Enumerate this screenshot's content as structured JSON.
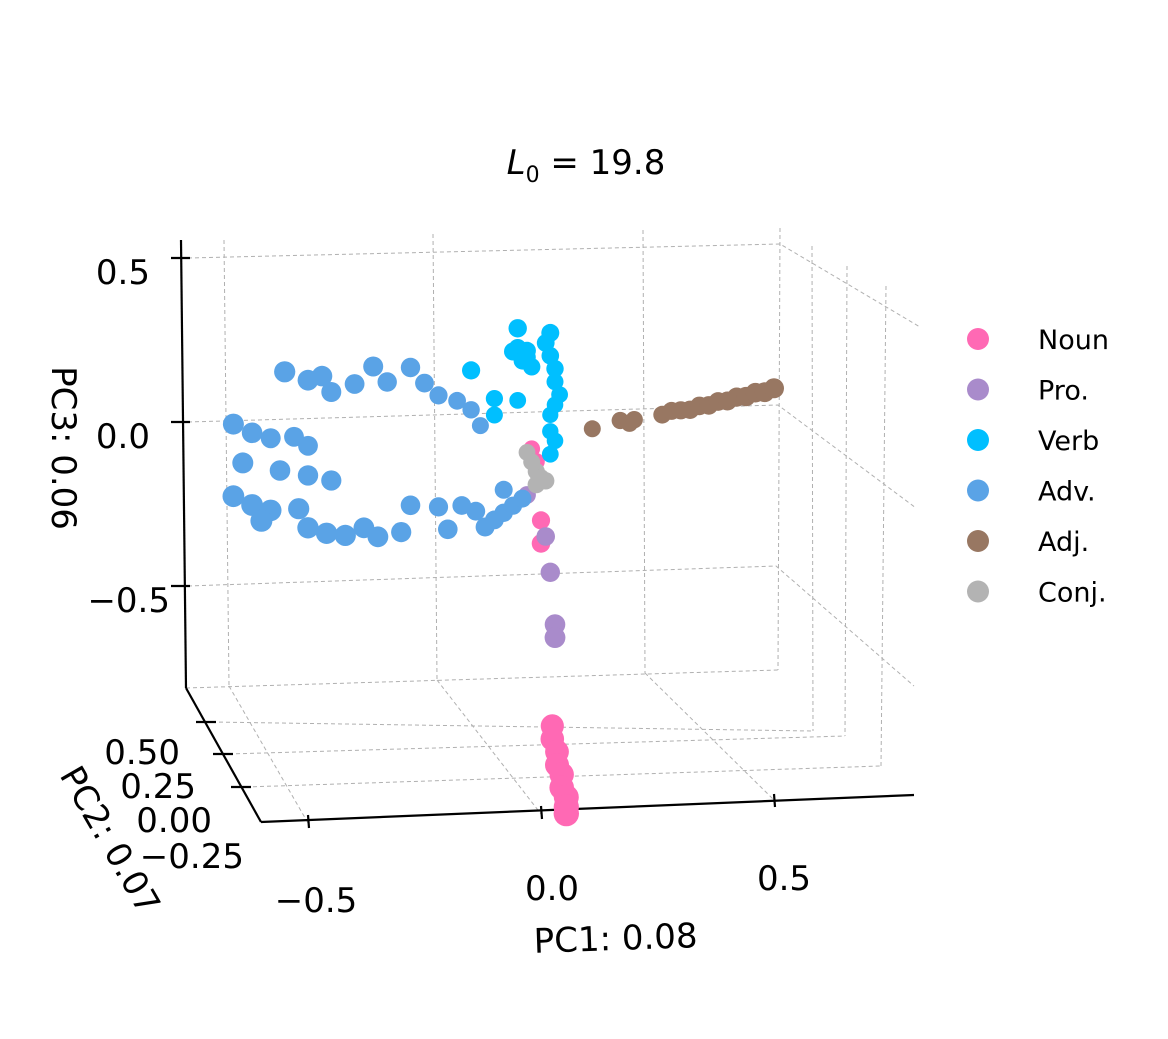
{
  "chart_data": {
    "type": "scatter3d",
    "title": {
      "base": "L",
      "sub": "0",
      "rest": " = 19.8"
    },
    "xlabel": "PC1: 0.08",
    "ylabel": "PC2: 0.07",
    "zlabel": "PC3: 0.06",
    "x_ticks": [
      "−0.5",
      "0.0",
      "0.5"
    ],
    "y_ticks": [
      "0.50",
      "0.25",
      "0.00",
      "−0.25"
    ],
    "z_ticks": [
      "0.5",
      "0.0",
      "−0.5"
    ],
    "grid": true,
    "legend_position": "right",
    "series": [
      {
        "name": "Noun",
        "color": "#ff69b4",
        "points": [
          [
            -0.01,
            -0.1,
            -0.12
          ],
          [
            -0.02,
            -0.1,
            -0.08
          ],
          [
            0.0,
            -0.1,
            -0.3
          ],
          [
            0.0,
            -0.1,
            -0.37
          ],
          [
            -0.01,
            -0.2,
            -0.95
          ],
          [
            -0.01,
            -0.2,
            -0.99
          ],
          [
            0.0,
            -0.2,
            -1.03
          ],
          [
            0.0,
            -0.2,
            -1.07
          ],
          [
            0.01,
            -0.2,
            -1.1
          ],
          [
            0.01,
            -0.2,
            -1.14
          ],
          [
            0.02,
            -0.2,
            -1.17
          ],
          [
            0.02,
            -0.2,
            -1.2
          ],
          [
            0.02,
            -0.2,
            -1.22
          ]
        ]
      },
      {
        "name": "Pro.",
        "color": "#a98bcb",
        "points": [
          [
            -0.03,
            -0.1,
            -0.22
          ],
          [
            0.01,
            -0.1,
            -0.35
          ],
          [
            0.02,
            -0.1,
            -0.46
          ],
          [
            0.03,
            -0.1,
            -0.62
          ],
          [
            0.03,
            -0.1,
            -0.66
          ]
        ]
      },
      {
        "name": "Verb",
        "color": "#00bfff",
        "points": [
          [
            -0.05,
            -0.1,
            0.29
          ],
          [
            -0.05,
            -0.1,
            0.23
          ],
          [
            -0.06,
            -0.1,
            0.22
          ],
          [
            -0.03,
            -0.1,
            0.22
          ],
          [
            -0.04,
            -0.1,
            0.19
          ],
          [
            -0.02,
            -0.1,
            0.17
          ],
          [
            -0.03,
            -0.1,
            0.2
          ],
          [
            0.02,
            -0.1,
            0.27
          ],
          [
            0.01,
            -0.1,
            0.24
          ],
          [
            0.02,
            -0.1,
            0.2
          ],
          [
            0.03,
            -0.1,
            0.16
          ],
          [
            0.03,
            -0.1,
            0.12
          ],
          [
            0.04,
            -0.1,
            0.08
          ],
          [
            0.03,
            -0.1,
            0.05
          ],
          [
            0.02,
            -0.1,
            0.02
          ],
          [
            0.02,
            -0.1,
            -0.03
          ],
          [
            0.03,
            -0.1,
            -0.06
          ],
          [
            0.02,
            -0.1,
            -0.1
          ],
          [
            -0.05,
            -0.1,
            0.07
          ],
          [
            -0.1,
            -0.1,
            0.08
          ],
          [
            -0.15,
            -0.1,
            0.17
          ],
          [
            -0.1,
            -0.1,
            0.03
          ]
        ]
      },
      {
        "name": "Adv.",
        "color": "#5aa3e6",
        "points": [
          [
            -0.55,
            -0.1,
            0.2
          ],
          [
            -0.5,
            -0.1,
            0.17
          ],
          [
            -0.47,
            -0.1,
            0.18
          ],
          [
            -0.45,
            -0.1,
            0.13
          ],
          [
            -0.4,
            -0.1,
            0.15
          ],
          [
            -0.36,
            -0.1,
            0.2
          ],
          [
            -0.33,
            -0.1,
            0.15
          ],
          [
            -0.28,
            -0.1,
            0.19
          ],
          [
            -0.25,
            -0.1,
            0.14
          ],
          [
            -0.22,
            -0.1,
            0.1
          ],
          [
            -0.18,
            -0.1,
            0.08
          ],
          [
            -0.15,
            -0.1,
            0.05
          ],
          [
            -0.13,
            -0.1,
            0.0
          ],
          [
            -0.66,
            -0.1,
            0.05
          ],
          [
            -0.62,
            -0.1,
            0.02
          ],
          [
            -0.58,
            -0.1,
            0.0
          ],
          [
            -0.53,
            -0.1,
            0.0
          ],
          [
            -0.5,
            -0.1,
            -0.03
          ],
          [
            -0.64,
            -0.1,
            -0.07
          ],
          [
            -0.56,
            -0.1,
            -0.1
          ],
          [
            -0.5,
            -0.1,
            -0.12
          ],
          [
            -0.45,
            -0.1,
            -0.14
          ],
          [
            -0.66,
            -0.1,
            -0.17
          ],
          [
            -0.62,
            -0.1,
            -0.2
          ],
          [
            -0.58,
            -0.1,
            -0.22
          ],
          [
            -0.6,
            -0.1,
            -0.25
          ],
          [
            -0.52,
            -0.1,
            -0.22
          ],
          [
            -0.5,
            -0.1,
            -0.28
          ],
          [
            -0.46,
            -0.1,
            -0.3
          ],
          [
            -0.42,
            -0.1,
            -0.31
          ],
          [
            -0.38,
            -0.1,
            -0.29
          ],
          [
            -0.35,
            -0.1,
            -0.32
          ],
          [
            -0.3,
            -0.1,
            -0.31
          ],
          [
            -0.28,
            -0.1,
            -0.23
          ],
          [
            -0.22,
            -0.1,
            -0.24
          ],
          [
            -0.2,
            -0.1,
            -0.31
          ],
          [
            -0.17,
            -0.1,
            -0.24
          ],
          [
            -0.14,
            -0.1,
            -0.26
          ],
          [
            -0.12,
            -0.1,
            -0.31
          ],
          [
            -0.1,
            -0.1,
            -0.29
          ],
          [
            -0.08,
            -0.1,
            -0.27
          ],
          [
            -0.06,
            -0.1,
            -0.25
          ],
          [
            -0.08,
            -0.1,
            -0.2
          ],
          [
            -0.04,
            -0.1,
            -0.23
          ]
        ]
      },
      {
        "name": "Adj.",
        "color": "#987762",
        "points": [
          [
            0.11,
            -0.1,
            -0.03
          ],
          [
            0.17,
            -0.1,
            -0.01
          ],
          [
            0.19,
            -0.1,
            -0.02
          ],
          [
            0.2,
            -0.1,
            -0.01
          ],
          [
            0.26,
            -0.1,
            0.0
          ],
          [
            0.28,
            -0.1,
            0.01
          ],
          [
            0.3,
            -0.1,
            0.01
          ],
          [
            0.32,
            -0.1,
            0.01
          ],
          [
            0.34,
            -0.1,
            0.02
          ],
          [
            0.36,
            -0.1,
            0.02
          ],
          [
            0.38,
            -0.1,
            0.03
          ],
          [
            0.4,
            -0.1,
            0.03
          ],
          [
            0.42,
            -0.1,
            0.04
          ],
          [
            0.44,
            -0.1,
            0.04
          ],
          [
            0.46,
            -0.1,
            0.05
          ],
          [
            0.48,
            -0.1,
            0.05
          ],
          [
            0.5,
            -0.1,
            0.06
          ]
        ]
      },
      {
        "name": "Conj.",
        "color": "#b3b3b3",
        "points": [
          [
            -0.03,
            -0.1,
            -0.09
          ],
          [
            -0.02,
            -0.1,
            -0.12
          ],
          [
            -0.01,
            -0.1,
            -0.15
          ],
          [
            0.0,
            -0.1,
            -0.17
          ],
          [
            -0.01,
            -0.1,
            -0.19
          ],
          [
            0.01,
            -0.1,
            -0.18
          ]
        ]
      }
    ]
  }
}
